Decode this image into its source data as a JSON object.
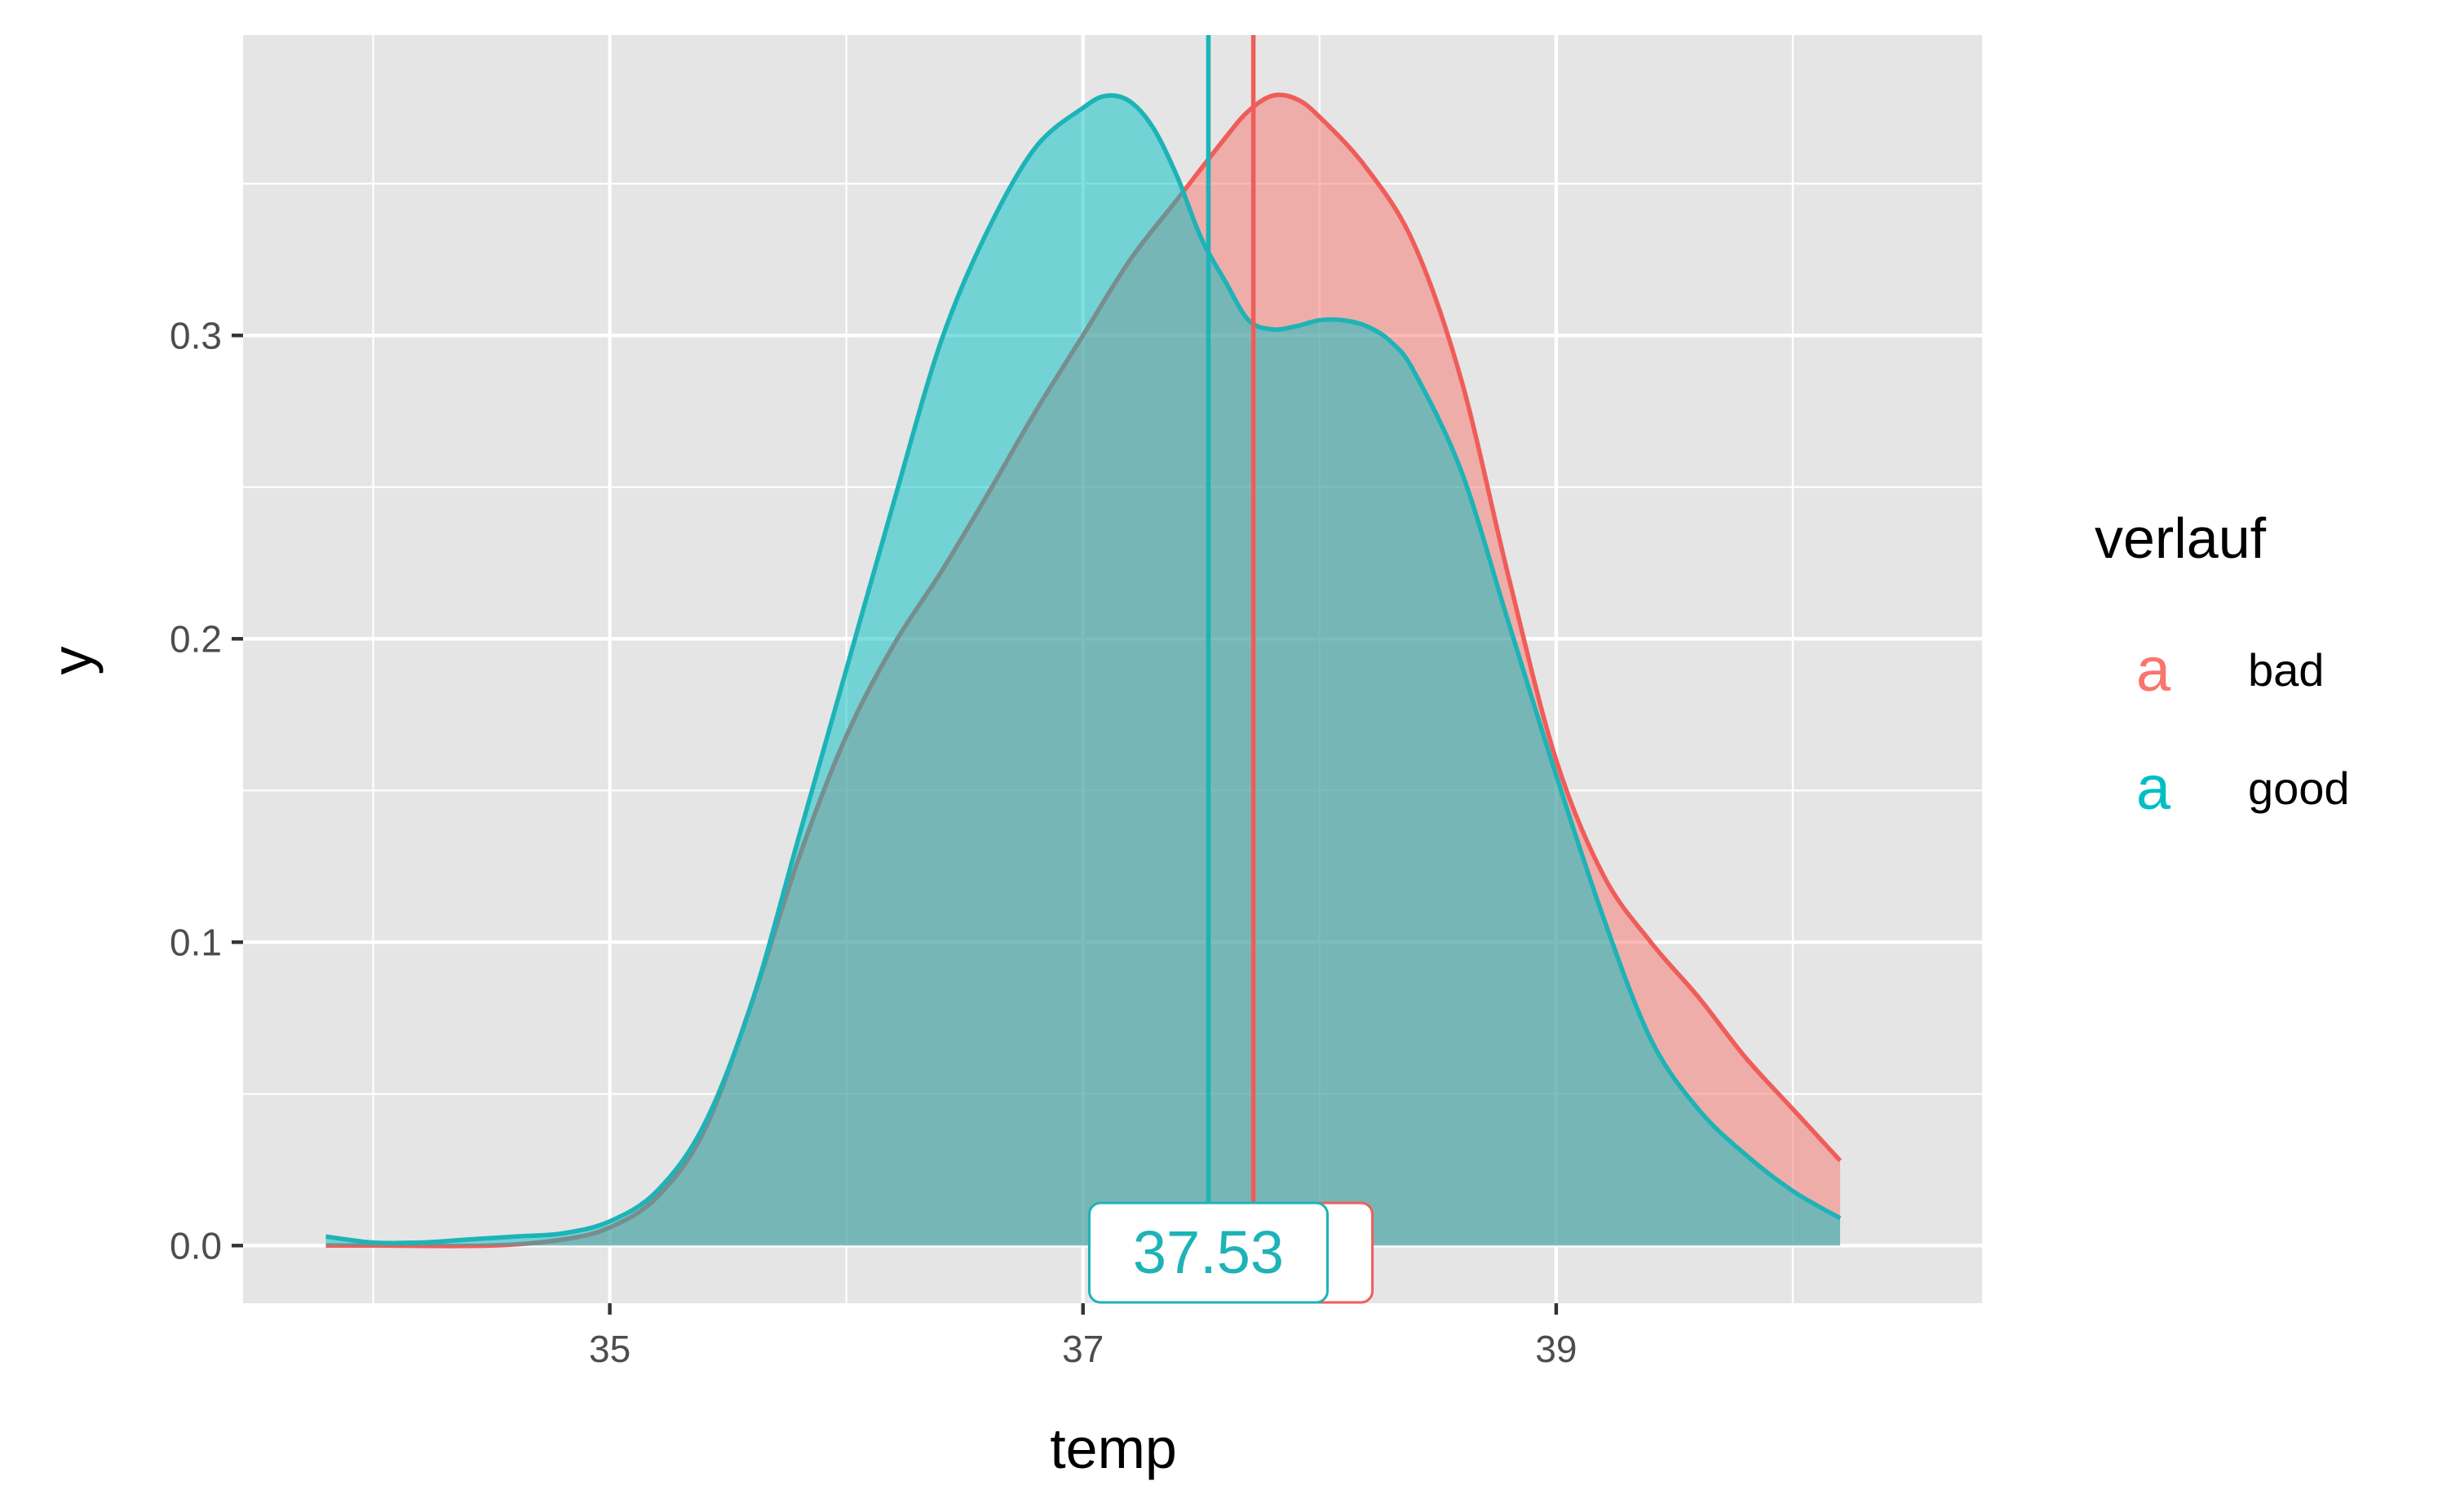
{
  "chart_data": {
    "type": "area",
    "xlabel": "temp",
    "ylabel": "y",
    "xlim": [
      33.45,
      40.8
    ],
    "ylim": [
      -0.019,
      0.399
    ],
    "x_ticks": [
      35,
      37,
      39
    ],
    "x_tick_labels": [
      "35",
      "37",
      "39"
    ],
    "x_minor_ticks": [
      34,
      36,
      38,
      40
    ],
    "y_ticks": [
      0.0,
      0.1,
      0.2,
      0.3
    ],
    "y_tick_labels": [
      "0.0",
      "0.1",
      "0.2",
      "0.3"
    ],
    "y_minor_ticks": [
      0.05,
      0.15,
      0.25,
      0.35
    ],
    "grid": true,
    "panel_background": "#e5e5e5",
    "fill_opacity": 0.5,
    "legend": {
      "title": "verlauf",
      "position": "right",
      "key_glyph": "a",
      "entries": [
        {
          "label": "bad",
          "color": "#f8766d"
        },
        {
          "label": "good",
          "color": "#00bfc4"
        }
      ]
    },
    "series": [
      {
        "name": "bad",
        "color": "#f8766d",
        "line_color": "#ef5d5a",
        "mean": 37.72,
        "mean_label": "37.72",
        "x": [
          33.8,
          34.0,
          34.5,
          34.8,
          35.0,
          35.2,
          35.4,
          35.6,
          35.8,
          36.0,
          36.2,
          36.4,
          36.6,
          36.8,
          37.0,
          37.2,
          37.4,
          37.6,
          37.7,
          37.8,
          37.9,
          38.0,
          38.2,
          38.4,
          38.6,
          38.8,
          39.0,
          39.2,
          39.4,
          39.6,
          39.8,
          40.0,
          40.2
        ],
        "y": [
          0.0,
          0.0,
          0.0,
          0.002,
          0.006,
          0.016,
          0.038,
          0.08,
          0.128,
          0.168,
          0.198,
          0.222,
          0.248,
          0.275,
          0.3,
          0.325,
          0.345,
          0.365,
          0.374,
          0.379,
          0.378,
          0.372,
          0.355,
          0.33,
          0.285,
          0.22,
          0.16,
          0.122,
          0.1,
          0.082,
          0.062,
          0.045,
          0.028
        ]
      },
      {
        "name": "good",
        "color": "#00bfc4",
        "line_color": "#1db3b7",
        "mean": 37.53,
        "mean_label": "37.53",
        "x": [
          33.8,
          34.0,
          34.2,
          34.4,
          34.6,
          34.8,
          35.0,
          35.2,
          35.4,
          35.6,
          35.8,
          36.0,
          36.2,
          36.4,
          36.6,
          36.8,
          37.0,
          37.1,
          37.2,
          37.3,
          37.4,
          37.5,
          37.6,
          37.7,
          37.8,
          37.9,
          38.0,
          38.1,
          38.2,
          38.3,
          38.4,
          38.6,
          38.8,
          39.0,
          39.2,
          39.4,
          39.6,
          39.8,
          40.0,
          40.2
        ],
        "y": [
          0.003,
          0.001,
          0.001,
          0.002,
          0.003,
          0.004,
          0.008,
          0.018,
          0.04,
          0.08,
          0.135,
          0.19,
          0.245,
          0.298,
          0.335,
          0.362,
          0.375,
          0.379,
          0.377,
          0.368,
          0.352,
          0.332,
          0.318,
          0.305,
          0.302,
          0.303,
          0.305,
          0.305,
          0.303,
          0.298,
          0.288,
          0.255,
          0.205,
          0.155,
          0.108,
          0.068,
          0.045,
          0.03,
          0.018,
          0.009
        ]
      }
    ]
  }
}
